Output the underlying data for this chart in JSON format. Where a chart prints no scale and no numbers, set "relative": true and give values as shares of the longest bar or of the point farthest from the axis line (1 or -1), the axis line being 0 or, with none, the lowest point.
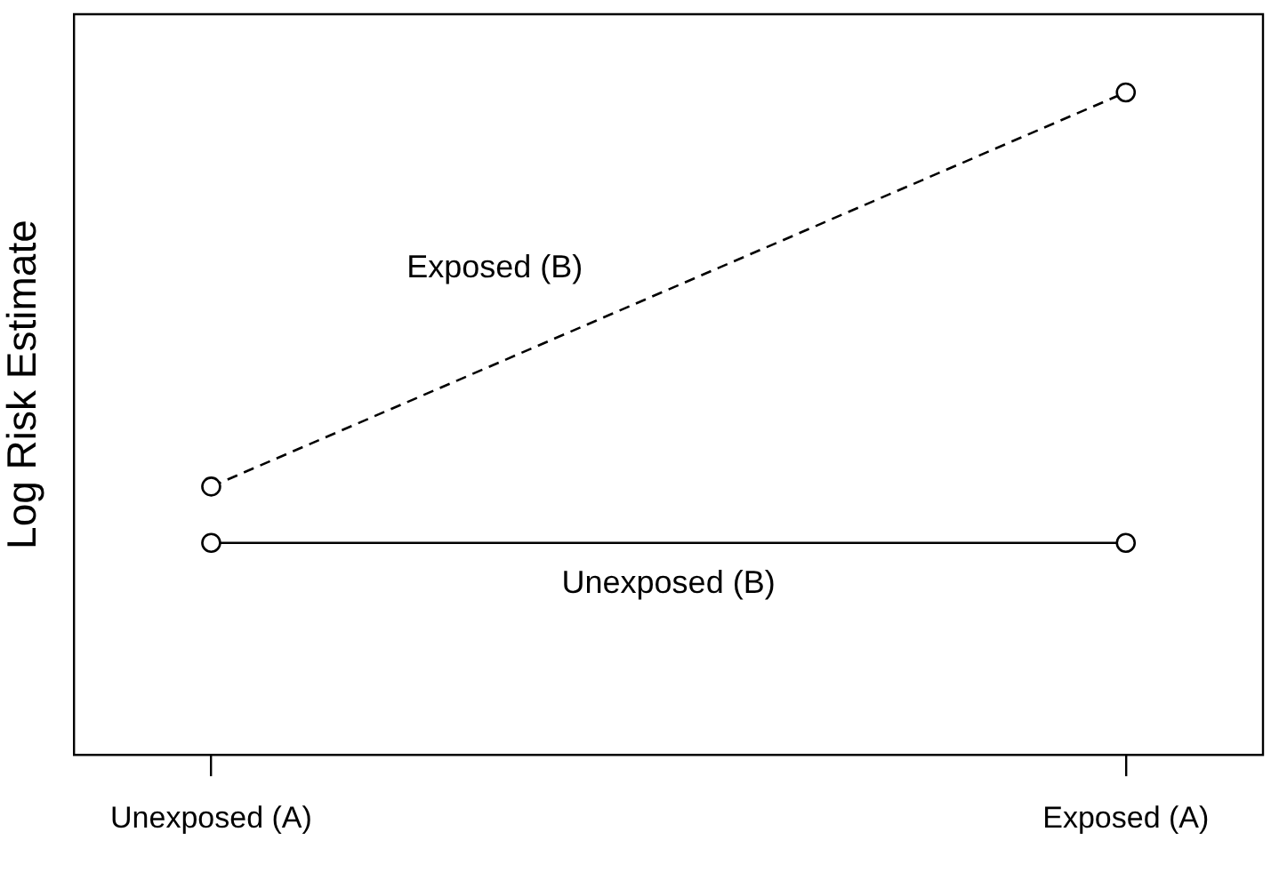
{
  "chart_data": {
    "type": "line",
    "ylabel": "Log Risk Estimate",
    "categories": [
      "Unexposed (A)",
      "Exposed (A)"
    ],
    "relative": true,
    "grid": false,
    "legend": false,
    "marker": "circle",
    "series": [
      {
        "name": "Exposed (B)",
        "color": "#000000",
        "values": [
          0.405,
          1
        ],
        "line_style": "dashed"
      },
      {
        "name": "Unexposed (B)",
        "color": "#000000",
        "values": [
          0.32,
          0.32
        ],
        "line_style": "solid"
      }
    ]
  }
}
